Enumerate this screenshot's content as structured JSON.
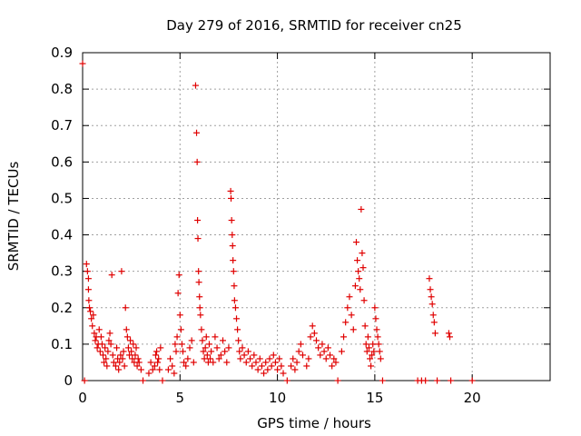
{
  "chart_data": {
    "type": "scatter",
    "title": "Day 279 of 2016, SRMTID for receiver cn25",
    "xlabel": "GPS time / hours",
    "ylabel": "SRMTID / TECUs",
    "xlim": [
      0,
      24
    ],
    "ylim": [
      0,
      0.9
    ],
    "x_ticks": [
      "0",
      "5",
      "10",
      "15",
      "20"
    ],
    "y_ticks": [
      "0",
      "0.1",
      "0.2",
      "0.3",
      "0.4",
      "0.5",
      "0.6",
      "0.7",
      "0.8",
      "0.9"
    ],
    "grid": true,
    "marker": "+",
    "color": "#e00000",
    "series": [
      {
        "points": [
          [
            0.0,
            0.87
          ],
          [
            0.1,
            0.0
          ],
          [
            0.2,
            0.32
          ],
          [
            0.25,
            0.3
          ],
          [
            0.3,
            0.28
          ],
          [
            0.3,
            0.25
          ],
          [
            0.32,
            0.22
          ],
          [
            0.35,
            0.2
          ],
          [
            0.4,
            0.19
          ],
          [
            0.45,
            0.17
          ],
          [
            0.5,
            0.15
          ],
          [
            0.55,
            0.18
          ],
          [
            0.6,
            0.13
          ],
          [
            0.65,
            0.11
          ],
          [
            0.7,
            0.12
          ],
          [
            0.75,
            0.09
          ],
          [
            0.8,
            0.1
          ],
          [
            0.85,
            0.14
          ],
          [
            0.9,
            0.08
          ],
          [
            0.95,
            0.12
          ],
          [
            1.0,
            0.1
          ],
          [
            1.05,
            0.07
          ],
          [
            1.1,
            0.05
          ],
          [
            1.15,
            0.09
          ],
          [
            1.2,
            0.06
          ],
          [
            1.25,
            0.04
          ],
          [
            1.3,
            0.08
          ],
          [
            1.35,
            0.11
          ],
          [
            1.4,
            0.13
          ],
          [
            1.45,
            0.1
          ],
          [
            1.5,
            0.29
          ],
          [
            1.55,
            0.07
          ],
          [
            1.6,
            0.05
          ],
          [
            1.7,
            0.04
          ],
          [
            1.75,
            0.09
          ],
          [
            1.8,
            0.06
          ],
          [
            1.85,
            0.03
          ],
          [
            1.9,
            0.05
          ],
          [
            1.95,
            0.07
          ],
          [
            2.0,
            0.3
          ],
          [
            2.05,
            0.06
          ],
          [
            2.1,
            0.08
          ],
          [
            2.15,
            0.04
          ],
          [
            2.2,
            0.2
          ],
          [
            2.25,
            0.14
          ],
          [
            2.3,
            0.12
          ],
          [
            2.35,
            0.09
          ],
          [
            2.4,
            0.07
          ],
          [
            2.45,
            0.11
          ],
          [
            2.5,
            0.08
          ],
          [
            2.55,
            0.06
          ],
          [
            2.6,
            0.1
          ],
          [
            2.65,
            0.05
          ],
          [
            2.7,
            0.07
          ],
          [
            2.75,
            0.09
          ],
          [
            2.8,
            0.04
          ],
          [
            2.85,
            0.06
          ],
          [
            2.9,
            0.05
          ],
          [
            3.0,
            0.03
          ],
          [
            3.1,
            0.0
          ],
          [
            3.4,
            0.02
          ],
          [
            3.5,
            0.05
          ],
          [
            3.6,
            0.03
          ],
          [
            3.7,
            0.04
          ],
          [
            3.75,
            0.07
          ],
          [
            3.8,
            0.08
          ],
          [
            3.85,
            0.05
          ],
          [
            3.9,
            0.06
          ],
          [
            3.95,
            0.03
          ],
          [
            4.0,
            0.09
          ],
          [
            4.1,
            0.0
          ],
          [
            4.4,
            0.03
          ],
          [
            4.5,
            0.06
          ],
          [
            4.6,
            0.04
          ],
          [
            4.7,
            0.02
          ],
          [
            4.75,
            0.1
          ],
          [
            4.8,
            0.08
          ],
          [
            4.85,
            0.12
          ],
          [
            4.9,
            0.24
          ],
          [
            4.95,
            0.29
          ],
          [
            5.0,
            0.18
          ],
          [
            5.05,
            0.14
          ],
          [
            5.1,
            0.1
          ],
          [
            5.15,
            0.08
          ],
          [
            5.2,
            0.05
          ],
          [
            5.3,
            0.04
          ],
          [
            5.4,
            0.06
          ],
          [
            5.5,
            0.09
          ],
          [
            5.6,
            0.11
          ],
          [
            5.7,
            0.05
          ],
          [
            5.8,
            0.81
          ],
          [
            5.85,
            0.68
          ],
          [
            5.88,
            0.6
          ],
          [
            5.9,
            0.44
          ],
          [
            5.92,
            0.39
          ],
          [
            5.95,
            0.3
          ],
          [
            5.97,
            0.27
          ],
          [
            6.0,
            0.23
          ],
          [
            6.02,
            0.2
          ],
          [
            6.05,
            0.18
          ],
          [
            6.1,
            0.14
          ],
          [
            6.15,
            0.11
          ],
          [
            6.2,
            0.08
          ],
          [
            6.25,
            0.06
          ],
          [
            6.3,
            0.09
          ],
          [
            6.35,
            0.12
          ],
          [
            6.4,
            0.07
          ],
          [
            6.45,
            0.05
          ],
          [
            6.5,
            0.1
          ],
          [
            6.55,
            0.06
          ],
          [
            6.6,
            0.08
          ],
          [
            6.7,
            0.05
          ],
          [
            6.8,
            0.12
          ],
          [
            6.9,
            0.09
          ],
          [
            7.0,
            0.06
          ],
          [
            7.1,
            0.07
          ],
          [
            7.2,
            0.11
          ],
          [
            7.3,
            0.08
          ],
          [
            7.4,
            0.05
          ],
          [
            7.5,
            0.09
          ],
          [
            7.6,
            0.52
          ],
          [
            7.62,
            0.5
          ],
          [
            7.65,
            0.44
          ],
          [
            7.68,
            0.4
          ],
          [
            7.7,
            0.37
          ],
          [
            7.72,
            0.33
          ],
          [
            7.75,
            0.3
          ],
          [
            7.78,
            0.26
          ],
          [
            7.8,
            0.22
          ],
          [
            7.85,
            0.2
          ],
          [
            7.9,
            0.17
          ],
          [
            7.95,
            0.14
          ],
          [
            8.0,
            0.11
          ],
          [
            8.05,
            0.08
          ],
          [
            8.1,
            0.06
          ],
          [
            8.2,
            0.09
          ],
          [
            8.3,
            0.07
          ],
          [
            8.4,
            0.05
          ],
          [
            8.5,
            0.08
          ],
          [
            8.6,
            0.06
          ],
          [
            8.7,
            0.04
          ],
          [
            8.8,
            0.07
          ],
          [
            8.9,
            0.05
          ],
          [
            9.0,
            0.03
          ],
          [
            9.1,
            0.06
          ],
          [
            9.2,
            0.04
          ],
          [
            9.3,
            0.02
          ],
          [
            9.4,
            0.05
          ],
          [
            9.5,
            0.03
          ],
          [
            9.6,
            0.06
          ],
          [
            9.7,
            0.04
          ],
          [
            9.8,
            0.07
          ],
          [
            9.9,
            0.05
          ],
          [
            10.0,
            0.03
          ],
          [
            10.1,
            0.06
          ],
          [
            10.2,
            0.04
          ],
          [
            10.3,
            0.02
          ],
          [
            10.5,
            0.0
          ],
          [
            10.7,
            0.04
          ],
          [
            10.8,
            0.06
          ],
          [
            10.9,
            0.03
          ],
          [
            11.0,
            0.05
          ],
          [
            11.1,
            0.08
          ],
          [
            11.2,
            0.1
          ],
          [
            11.3,
            0.07
          ],
          [
            11.5,
            0.04
          ],
          [
            11.6,
            0.06
          ],
          [
            11.7,
            0.12
          ],
          [
            11.8,
            0.15
          ],
          [
            11.9,
            0.13
          ],
          [
            12.0,
            0.11
          ],
          [
            12.1,
            0.09
          ],
          [
            12.2,
            0.07
          ],
          [
            12.3,
            0.1
          ],
          [
            12.4,
            0.08
          ],
          [
            12.5,
            0.06
          ],
          [
            12.6,
            0.09
          ],
          [
            12.7,
            0.07
          ],
          [
            12.8,
            0.04
          ],
          [
            12.9,
            0.06
          ],
          [
            13.0,
            0.05
          ],
          [
            13.1,
            0.0
          ],
          [
            13.3,
            0.08
          ],
          [
            13.4,
            0.12
          ],
          [
            13.5,
            0.16
          ],
          [
            13.6,
            0.2
          ],
          [
            13.7,
            0.23
          ],
          [
            13.8,
            0.18
          ],
          [
            13.9,
            0.14
          ],
          [
            14.0,
            0.26
          ],
          [
            14.05,
            0.38
          ],
          [
            14.1,
            0.33
          ],
          [
            14.15,
            0.3
          ],
          [
            14.2,
            0.28
          ],
          [
            14.25,
            0.25
          ],
          [
            14.3,
            0.47
          ],
          [
            14.35,
            0.35
          ],
          [
            14.4,
            0.31
          ],
          [
            14.45,
            0.22
          ],
          [
            14.5,
            0.15
          ],
          [
            14.55,
            0.1
          ],
          [
            14.6,
            0.08
          ],
          [
            14.65,
            0.12
          ],
          [
            14.7,
            0.09
          ],
          [
            14.75,
            0.06
          ],
          [
            14.8,
            0.04
          ],
          [
            14.85,
            0.07
          ],
          [
            14.9,
            0.1
          ],
          [
            14.95,
            0.08
          ],
          [
            15.0,
            0.2
          ],
          [
            15.05,
            0.17
          ],
          [
            15.1,
            0.14
          ],
          [
            15.15,
            0.12
          ],
          [
            15.2,
            0.1
          ],
          [
            15.25,
            0.08
          ],
          [
            15.3,
            0.06
          ],
          [
            15.4,
            0.0
          ],
          [
            17.2,
            0.0
          ],
          [
            17.4,
            0.0
          ],
          [
            17.6,
            0.0
          ],
          [
            17.8,
            0.28
          ],
          [
            17.85,
            0.25
          ],
          [
            17.9,
            0.23
          ],
          [
            17.95,
            0.21
          ],
          [
            18.0,
            0.18
          ],
          [
            18.05,
            0.16
          ],
          [
            18.1,
            0.13
          ],
          [
            18.2,
            0.0
          ],
          [
            18.8,
            0.13
          ],
          [
            18.85,
            0.12
          ],
          [
            18.9,
            0.0
          ],
          [
            20.0,
            0.0
          ]
        ]
      }
    ]
  }
}
